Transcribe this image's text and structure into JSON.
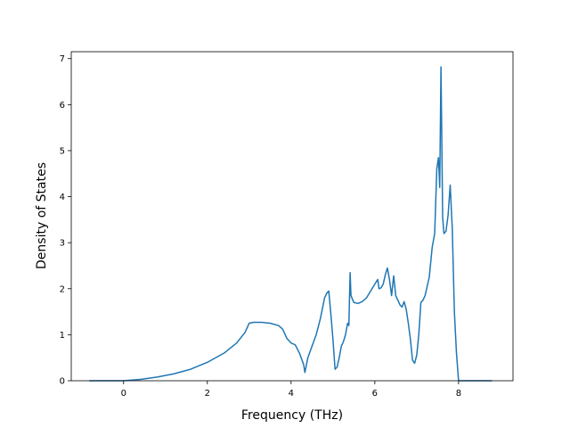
{
  "chart_data": {
    "type": "line",
    "title": "",
    "xlabel": "Frequency (THz)",
    "ylabel": "Density of States",
    "xlim": [
      -1.25,
      9.3
    ],
    "ylim": [
      0,
      7.15
    ],
    "xticks": [
      0,
      2,
      4,
      6,
      8
    ],
    "yticks": [
      0,
      1,
      2,
      3,
      4,
      5,
      6,
      7
    ],
    "grid": false,
    "legend": "none",
    "line_color": "#1f77b4",
    "series": [
      {
        "x": [
          -0.82,
          -0.4,
          0.0,
          0.4,
          0.8,
          1.2,
          1.6,
          2.0,
          2.4,
          2.7,
          2.9,
          3.0,
          3.1,
          3.3,
          3.5,
          3.7,
          3.8,
          3.9,
          4.0,
          4.1,
          4.2,
          4.3,
          4.33,
          4.4,
          4.5,
          4.6,
          4.7,
          4.8,
          4.85,
          4.9,
          4.95,
          5.0,
          5.05,
          5.1,
          5.15,
          5.2,
          5.25,
          5.3,
          5.35,
          5.38,
          5.41,
          5.43,
          5.5,
          5.6,
          5.7,
          5.8,
          5.9,
          6.0,
          6.07,
          6.1,
          6.15,
          6.2,
          6.25,
          6.3,
          6.35,
          6.4,
          6.45,
          6.5,
          6.6,
          6.65,
          6.7,
          6.75,
          6.8,
          6.85,
          6.9,
          6.95,
          7.0,
          7.05,
          7.1,
          7.15,
          7.2,
          7.3,
          7.37,
          7.43,
          7.48,
          7.52,
          7.55,
          7.58,
          7.62,
          7.65,
          7.7,
          7.75,
          7.8,
          7.85,
          7.9,
          7.95,
          8.0,
          8.05,
          8.3,
          8.55,
          8.8
        ],
        "y": [
          0.0,
          0.0,
          0.0,
          0.03,
          0.08,
          0.15,
          0.25,
          0.4,
          0.6,
          0.82,
          1.05,
          1.25,
          1.27,
          1.27,
          1.25,
          1.2,
          1.12,
          0.92,
          0.82,
          0.78,
          0.6,
          0.35,
          0.18,
          0.5,
          0.75,
          1.0,
          1.35,
          1.8,
          1.9,
          1.95,
          1.45,
          0.9,
          0.25,
          0.3,
          0.5,
          0.75,
          0.85,
          1.0,
          1.25,
          1.2,
          2.35,
          1.85,
          1.7,
          1.68,
          1.72,
          1.8,
          1.95,
          2.1,
          2.2,
          2.0,
          2.02,
          2.1,
          2.3,
          2.45,
          2.2,
          1.85,
          2.28,
          1.85,
          1.65,
          1.6,
          1.72,
          1.55,
          1.25,
          0.9,
          0.45,
          0.38,
          0.55,
          1.0,
          1.7,
          1.75,
          1.85,
          2.25,
          2.9,
          3.2,
          4.6,
          4.85,
          4.2,
          6.82,
          3.55,
          3.2,
          3.25,
          3.6,
          4.25,
          3.3,
          1.5,
          0.6,
          0.0,
          0.0,
          0.0,
          0.0,
          0.0
        ]
      }
    ]
  }
}
